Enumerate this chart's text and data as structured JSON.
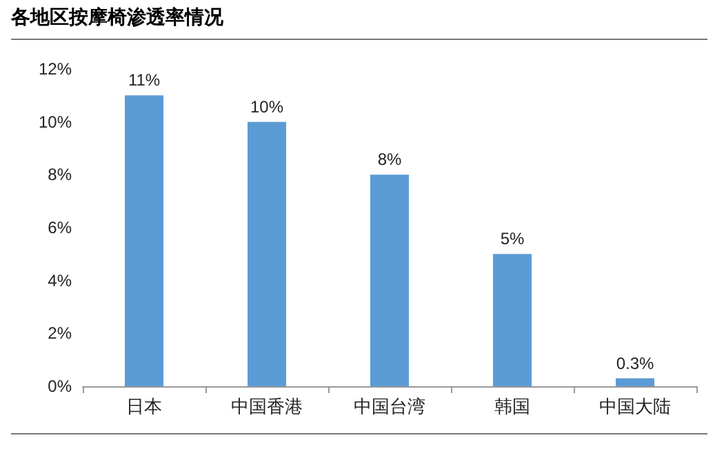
{
  "chart_data": {
    "type": "bar",
    "title": "各地区按摩椅渗透率情况",
    "categories": [
      "日本",
      "中国香港",
      "中国台湾",
      "韩国",
      "中国大陆"
    ],
    "values": [
      11,
      10,
      8,
      5,
      0.3
    ],
    "value_labels": [
      "11%",
      "10%",
      "8%",
      "5%",
      "0.3%"
    ],
    "color": "#5b9bd5",
    "ylim": [
      0,
      12
    ],
    "yticks": [
      {
        "value": 0,
        "label": "0%"
      },
      {
        "value": 2,
        "label": "2%"
      },
      {
        "value": 4,
        "label": "4%"
      },
      {
        "value": 6,
        "label": "6%"
      },
      {
        "value": 8,
        "label": "8%"
      },
      {
        "value": 10,
        "label": "10%"
      },
      {
        "value": 12,
        "label": "12%"
      }
    ],
    "grid": false
  }
}
